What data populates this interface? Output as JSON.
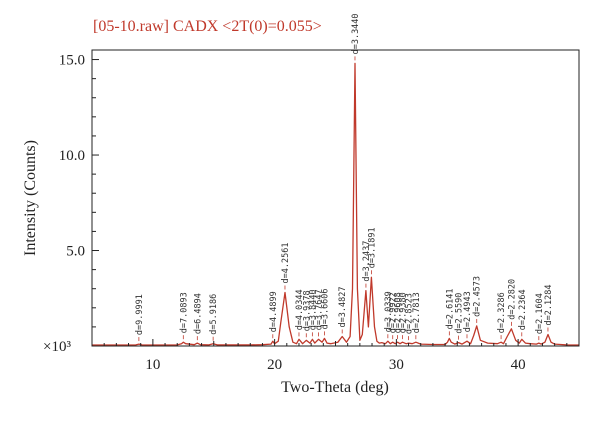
{
  "chart_data": {
    "type": "line",
    "title": "[05-10.raw] CADX <2T(0)=0.055>",
    "xlabel": "Two-Theta (deg)",
    "ylabel": "Intensity (Counts)",
    "y_unit_label": "×10³",
    "xlim": [
      5,
      45
    ],
    "ylim": [
      0,
      15.5
    ],
    "x_ticks": [
      10,
      20,
      30,
      40
    ],
    "x_tick_labels": [
      "10",
      "20",
      "30",
      "40"
    ],
    "y_ticks": [
      5,
      10,
      15
    ],
    "y_tick_labels": [
      "5.0",
      "10.0",
      "15.0"
    ],
    "grid": false,
    "series": [
      {
        "color": "#c0392b",
        "x": [
          5,
          6,
          7,
          8,
          8.6,
          8.85,
          9.1,
          10,
          11,
          12,
          12.35,
          12.5,
          12.7,
          13.4,
          13.65,
          13.9,
          14.6,
          14.95,
          15.3,
          16,
          17,
          18,
          19,
          19.7,
          19.85,
          20.0,
          20.3,
          20.5,
          20.85,
          21.2,
          21.5,
          21.8,
          22.0,
          22.3,
          22.6,
          22.9,
          23.1,
          23.3,
          23.6,
          23.9,
          24.1,
          24.3,
          24.6,
          25.2,
          25.55,
          25.9,
          26.2,
          26.4,
          26.6,
          26.8,
          27.0,
          27.2,
          27.5,
          27.7,
          27.95,
          28.2,
          28.4,
          28.6,
          28.8,
          29.1,
          29.3,
          29.5,
          29.7,
          29.9,
          30.1,
          30.3,
          30.5,
          30.8,
          31.0,
          31.3,
          31.6,
          32.0,
          33,
          34,
          34.2,
          34.35,
          34.5,
          34.8,
          35.1,
          35.4,
          35.8,
          36.1,
          36.35,
          36.6,
          36.9,
          37.5,
          38.3,
          38.6,
          38.8,
          39.1,
          39.45,
          39.8,
          40.1,
          40.3,
          40.6,
          41.0,
          41.5,
          41.7,
          41.9,
          42.2,
          42.45,
          42.7,
          43.0,
          44,
          45
        ],
        "y": [
          0.05,
          0.05,
          0.05,
          0.05,
          0.06,
          0.1,
          0.06,
          0.05,
          0.05,
          0.06,
          0.12,
          0.2,
          0.12,
          0.07,
          0.15,
          0.07,
          0.06,
          0.12,
          0.06,
          0.06,
          0.06,
          0.06,
          0.07,
          0.1,
          0.25,
          0.12,
          0.25,
          1.2,
          2.8,
          1.0,
          0.2,
          0.12,
          0.35,
          0.12,
          0.3,
          0.15,
          0.35,
          0.15,
          0.35,
          0.2,
          0.4,
          0.15,
          0.12,
          0.2,
          0.5,
          0.2,
          0.5,
          3.0,
          14.8,
          3.0,
          0.3,
          0.6,
          2.9,
          1.0,
          3.6,
          1.0,
          0.25,
          0.15,
          0.18,
          0.12,
          0.25,
          0.12,
          0.2,
          0.12,
          0.2,
          0.12,
          0.2,
          0.12,
          0.15,
          0.12,
          0.2,
          0.1,
          0.08,
          0.08,
          0.2,
          0.4,
          0.2,
          0.1,
          0.18,
          0.1,
          0.25,
          0.12,
          0.55,
          1.05,
          0.3,
          0.15,
          0.12,
          0.2,
          0.12,
          0.5,
          0.9,
          0.3,
          0.15,
          0.35,
          0.15,
          0.12,
          0.1,
          0.15,
          0.1,
          0.2,
          0.6,
          0.2,
          0.1,
          0.06,
          0.05
        ]
      }
    ],
    "peaks": [
      {
        "x": 8.85,
        "y": 0.1,
        "label": "d=9.9991"
      },
      {
        "x": 12.5,
        "y": 0.2,
        "label": "d=7.0893"
      },
      {
        "x": 13.65,
        "y": 0.15,
        "label": "d=6.4894"
      },
      {
        "x": 14.95,
        "y": 0.12,
        "label": "d=5.9186"
      },
      {
        "x": 19.85,
        "y": 0.25,
        "label": "d=4.4899"
      },
      {
        "x": 20.85,
        "y": 2.8,
        "label": "d=4.2561"
      },
      {
        "x": 22.0,
        "y": 0.35,
        "label": "d=4.0344"
      },
      {
        "x": 22.6,
        "y": 0.3,
        "label": "d=3.9378"
      },
      {
        "x": 23.1,
        "y": 0.35,
        "label": "d=3.8440"
      },
      {
        "x": 23.6,
        "y": 0.35,
        "label": "d=3.7647"
      },
      {
        "x": 24.1,
        "y": 0.4,
        "label": "d=3.6606"
      },
      {
        "x": 25.55,
        "y": 0.5,
        "label": "d=3.4827"
      },
      {
        "x": 26.6,
        "y": 14.8,
        "label": "d=3.3440"
      },
      {
        "x": 27.5,
        "y": 2.9,
        "label": "d=3.2437"
      },
      {
        "x": 27.95,
        "y": 3.6,
        "label": "d=3.1891"
      },
      {
        "x": 29.3,
        "y": 0.25,
        "label": "d=3.0339"
      },
      {
        "x": 29.7,
        "y": 0.2,
        "label": "d=2.9922"
      },
      {
        "x": 30.1,
        "y": 0.2,
        "label": "d=2.9608"
      },
      {
        "x": 30.5,
        "y": 0.2,
        "label": "d=2.9380"
      },
      {
        "x": 31.0,
        "y": 0.15,
        "label": "d=2.8523"
      },
      {
        "x": 31.6,
        "y": 0.2,
        "label": "d=2.7813"
      },
      {
        "x": 34.35,
        "y": 0.4,
        "label": "d=2.6141"
      },
      {
        "x": 35.1,
        "y": 0.18,
        "label": "d=2.5590"
      },
      {
        "x": 35.8,
        "y": 0.25,
        "label": "d=2.4943"
      },
      {
        "x": 36.6,
        "y": 1.05,
        "label": "d=2.4573"
      },
      {
        "x": 38.6,
        "y": 0.2,
        "label": "d=2.3286"
      },
      {
        "x": 39.45,
        "y": 0.9,
        "label": "d=2.2820"
      },
      {
        "x": 40.3,
        "y": 0.35,
        "label": "d=2.2364"
      },
      {
        "x": 41.7,
        "y": 0.15,
        "label": "d=2.1604"
      },
      {
        "x": 42.45,
        "y": 0.6,
        "label": "d=2.1284"
      }
    ]
  }
}
